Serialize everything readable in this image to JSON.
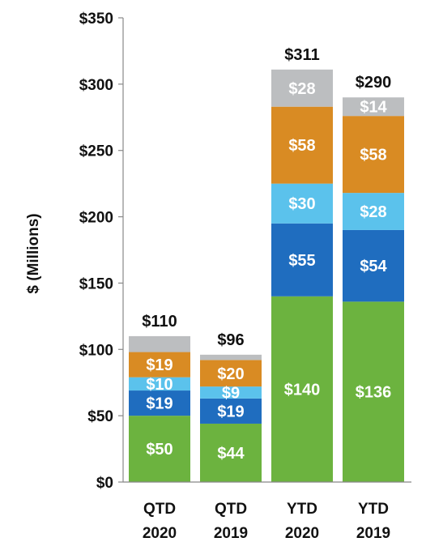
{
  "chart_data": {
    "type": "bar",
    "stacked": true,
    "ylabel": "$ (Millions)",
    "ylim": [
      0,
      350
    ],
    "yticks": [
      0,
      50,
      100,
      150,
      200,
      250,
      300,
      350
    ],
    "ytick_labels": [
      "$0",
      "$50",
      "$100",
      "$150",
      "$200",
      "$250",
      "$300",
      "$350"
    ],
    "grid": false,
    "legend": "none",
    "categories": [
      {
        "line1": "QTD",
        "line2": "2020"
      },
      {
        "line1": "QTD",
        "line2": "2019"
      },
      {
        "line1": "YTD",
        "line2": "2020"
      },
      {
        "line1": "YTD",
        "line2": "2019"
      }
    ],
    "series": [
      {
        "color": "#6cb33f",
        "values": [
          50,
          44,
          140,
          136
        ],
        "labels": [
          "$50",
          "$44",
          "$140",
          "$136"
        ]
      },
      {
        "color": "#1f6dbf",
        "values": [
          19,
          19,
          55,
          54
        ],
        "labels": [
          "$19",
          "$19",
          "$55",
          "$54"
        ]
      },
      {
        "color": "#5bc2ec",
        "values": [
          10,
          9,
          30,
          28
        ],
        "labels": [
          "$10",
          "$9",
          "$30",
          "$28"
        ]
      },
      {
        "color": "#d98b23",
        "values": [
          19,
          20,
          58,
          58
        ],
        "labels": [
          "$19",
          "$20",
          "$58",
          "$58"
        ]
      },
      {
        "color": "#bcbec0",
        "values": [
          12,
          4,
          28,
          14
        ],
        "labels": [
          "",
          "",
          "$28",
          "$14"
        ]
      }
    ],
    "totals": [
      110,
      96,
      311,
      290
    ],
    "total_labels": [
      "$110",
      "$96",
      "$311",
      "$290"
    ]
  }
}
